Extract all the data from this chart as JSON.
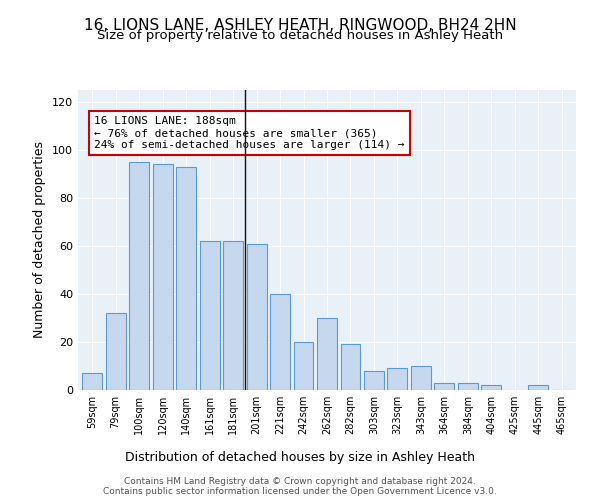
{
  "title": "16, LIONS LANE, ASHLEY HEATH, RINGWOOD, BH24 2HN",
  "subtitle": "Size of property relative to detached houses in Ashley Heath",
  "xlabel": "Distribution of detached houses by size in Ashley Heath",
  "ylabel": "Number of detached properties",
  "categories": [
    "59sqm",
    "79sqm",
    "100sqm",
    "120sqm",
    "140sqm",
    "161sqm",
    "181sqm",
    "201sqm",
    "221sqm",
    "242sqm",
    "262sqm",
    "282sqm",
    "303sqm",
    "323sqm",
    "343sqm",
    "364sqm",
    "384sqm",
    "404sqm",
    "425sqm",
    "445sqm",
    "465sqm"
  ],
  "values": [
    7,
    32,
    95,
    94,
    93,
    62,
    62,
    61,
    40,
    20,
    30,
    19,
    8,
    9,
    10,
    3,
    3,
    2,
    0,
    2,
    0
  ],
  "bar_color": "#c5d8ed",
  "bar_edge_color": "#5b9bd5",
  "highlight_index": 6,
  "highlight_line_color": "#111111",
  "annotation_text": "16 LIONS LANE: 188sqm\n← 76% of detached houses are smaller (365)\n24% of semi-detached houses are larger (114) →",
  "annotation_box_color": "#ffffff",
  "annotation_box_edge": "#cc0000",
  "ylim": [
    0,
    125
  ],
  "yticks": [
    0,
    20,
    40,
    60,
    80,
    100,
    120
  ],
  "plot_bg_color": "#e8f0f8",
  "footer_line1": "Contains HM Land Registry data © Crown copyright and database right 2024.",
  "footer_line2": "Contains public sector information licensed under the Open Government Licence v3.0.",
  "title_fontsize": 11,
  "subtitle_fontsize": 9.5,
  "xlabel_fontsize": 9,
  "ylabel_fontsize": 9
}
